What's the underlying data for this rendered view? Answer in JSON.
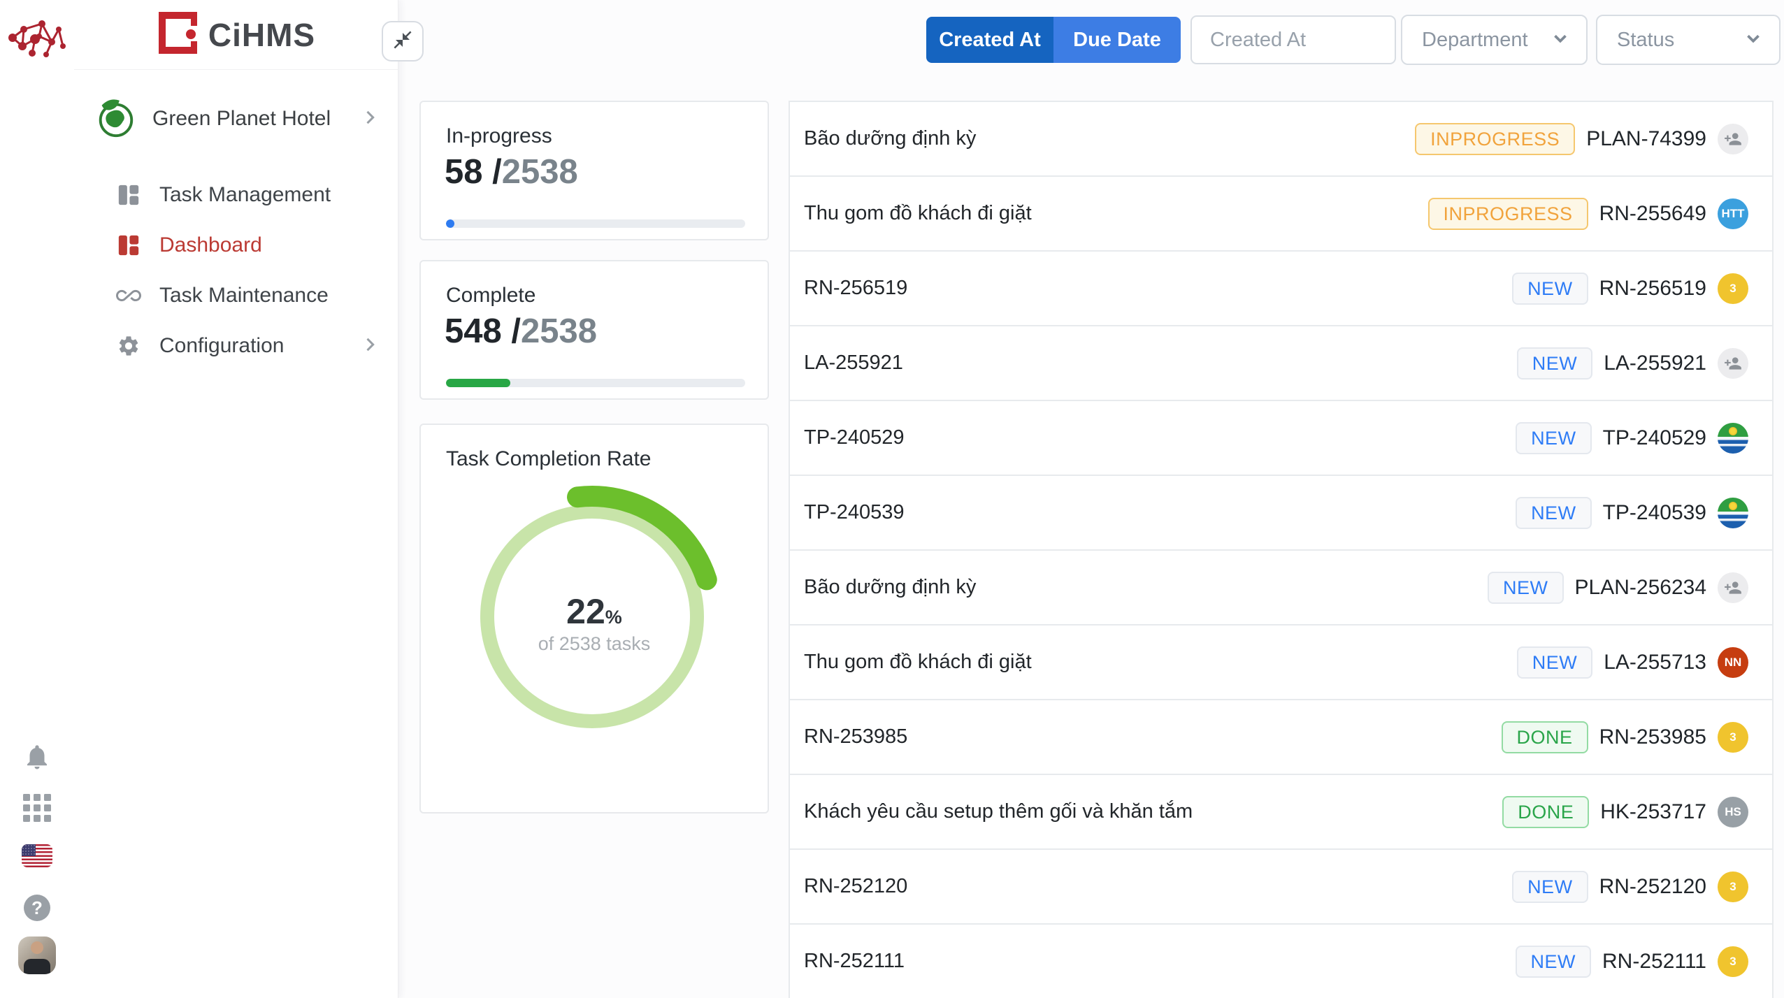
{
  "brand": {
    "name": "CiHMS"
  },
  "rail_icons": [
    "network-logo",
    "notifications-bell",
    "apps-grid",
    "language-us-flag",
    "help",
    "profile-avatar"
  ],
  "sidebar": {
    "hotel": "Green Planet Hotel",
    "menu": [
      {
        "label": "Task Management",
        "icon": "grid-layout-icon",
        "active": false
      },
      {
        "label": "Dashboard",
        "icon": "grid-layout-icon",
        "active": true
      },
      {
        "label": "Task Maintenance",
        "icon": "infinity-icon",
        "active": false
      },
      {
        "label": "Configuration",
        "icon": "gear-icon",
        "active": false
      }
    ]
  },
  "filters": {
    "sort_toggle": {
      "options": [
        "Created At",
        "Due Date"
      ],
      "selected": "Created At"
    },
    "date_input": {
      "placeholder": "Created At",
      "value": ""
    },
    "department": {
      "placeholder": "Department"
    },
    "status": {
      "placeholder": "Status"
    }
  },
  "stats": {
    "slash": "/",
    "in_progress": {
      "title": "In-progress",
      "count": "58",
      "total": "2538",
      "bar_color": "#2e7bf0"
    },
    "complete": {
      "title": "Complete",
      "count": "548",
      "total": "2538",
      "bar_color": "#28a745"
    },
    "completion": {
      "title": "Task Completion Rate",
      "percent": "22",
      "unit": "%",
      "subtitle": "of 2538 tasks",
      "ring_color": "#c8e4a9",
      "arc_color": "#6cbf2c",
      "value": 22
    }
  },
  "task_list": [
    {
      "title": "Bão dưỡng định kỳ",
      "status": "INPROGRESS",
      "id": "PLAN-74399",
      "assignee": {
        "type": "assign"
      }
    },
    {
      "title": "Thu gom đồ khách đi giặt",
      "status": "INPROGRESS",
      "id": "RN-255649",
      "assignee": {
        "type": "initials",
        "text": "HTT",
        "color": "#3ba0de"
      }
    },
    {
      "title": "RN-256519",
      "status": "NEW",
      "id": "RN-256519",
      "assignee": {
        "type": "initials",
        "text": "3",
        "color": "#f0c42e"
      }
    },
    {
      "title": "LA-255921",
      "status": "NEW",
      "id": "LA-255921",
      "assignee": {
        "type": "assign"
      }
    },
    {
      "title": "TP-240529",
      "status": "NEW",
      "id": "TP-240529",
      "assignee": {
        "type": "flag"
      }
    },
    {
      "title": "TP-240539",
      "status": "NEW",
      "id": "TP-240539",
      "assignee": {
        "type": "flag"
      }
    },
    {
      "title": "Bão dưỡng định kỳ",
      "status": "NEW",
      "id": "PLAN-256234",
      "assignee": {
        "type": "assign"
      }
    },
    {
      "title": "Thu gom đồ khách đi giặt",
      "status": "NEW",
      "id": "LA-255713",
      "assignee": {
        "type": "initials",
        "text": "NN",
        "color": "#c63d10"
      }
    },
    {
      "title": "RN-253985",
      "status": "DONE",
      "id": "RN-253985",
      "assignee": {
        "type": "initials",
        "text": "3",
        "color": "#f0c42e"
      }
    },
    {
      "title": "Khách yêu cầu setup thêm gối và khăn tắm",
      "status": "DONE",
      "id": "HK-253717",
      "assignee": {
        "type": "initials",
        "text": "HS",
        "color": "#98a0a6"
      }
    },
    {
      "title": "RN-252120",
      "status": "NEW",
      "id": "RN-252120",
      "assignee": {
        "type": "initials",
        "text": "3",
        "color": "#f0c42e"
      }
    },
    {
      "title": "RN-252111",
      "status": "NEW",
      "id": "RN-252111",
      "assignee": {
        "type": "initials",
        "text": "3",
        "color": "#f0c42e"
      }
    }
  ]
}
